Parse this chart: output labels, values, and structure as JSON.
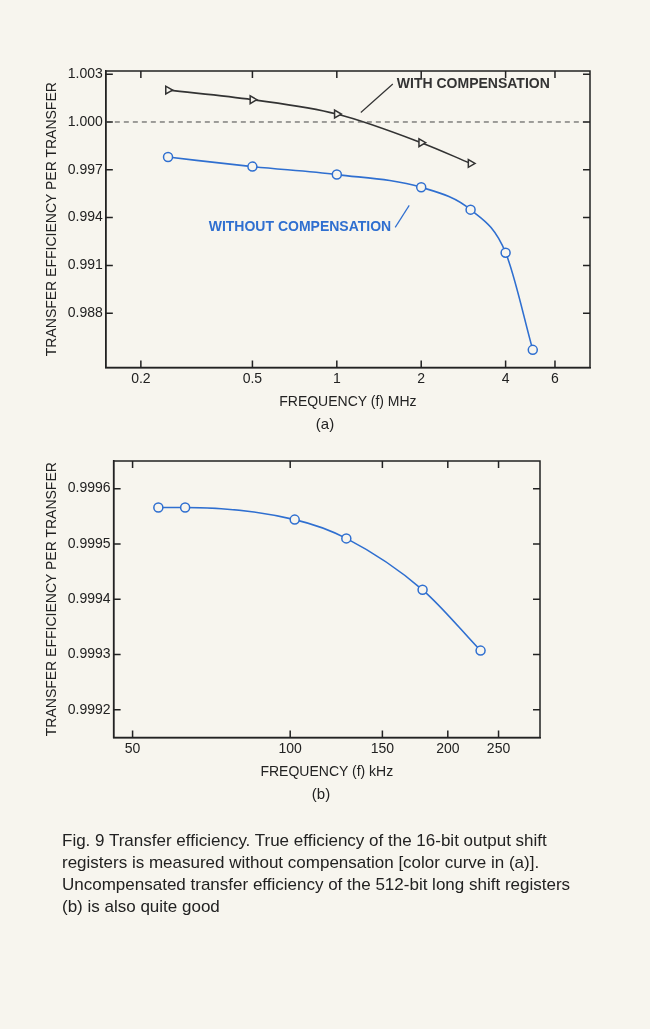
{
  "chart_data": [
    {
      "type": "line",
      "xlabel": "FREQUENCY (f) MHz",
      "ylabel": "TRANSFER EFFICIENCY PER TRANSFER",
      "log": "x",
      "xlim": [
        0.15,
        8
      ],
      "xticks": [
        0.2,
        0.5,
        1,
        2,
        4,
        6
      ],
      "ylim": [
        0.9846,
        1.0032
      ],
      "yticks": [
        0.988,
        0.991,
        0.994,
        0.997,
        {
          "value": 1,
          "label": "1.000"
        },
        1.003
      ],
      "grid": false,
      "legend": false,
      "ref_lines": [
        {
          "axis": "y",
          "value": 1,
          "line_style": "dashed",
          "color": "#444444"
        }
      ],
      "series": [
        {
          "name": "WITH COMPENSATION",
          "color": "#333333",
          "marker": "triangle",
          "x": [
            0.25,
            0.5,
            1,
            2,
            3
          ],
          "values": [
            1.002,
            1.0014,
            1.0005,
            0.9987,
            0.9974
          ]
        },
        {
          "name": "WITHOUT COMPENSATION",
          "color": "#2f6fd0",
          "marker": "circle",
          "x": [
            0.25,
            0.5,
            1,
            2,
            3,
            4,
            5
          ],
          "values": [
            0.9978,
            0.9972,
            0.9967,
            0.9959,
            0.9945,
            0.9918,
            0.9857
          ]
        }
      ],
      "annotations": [
        "(a)"
      ]
    },
    {
      "type": "line",
      "xlabel": "FREQUENCY (f) kHz",
      "ylabel": "TRANSFER EFFICIENCY PER TRANSFER",
      "log": "x",
      "xlim": [
        46,
        300
      ],
      "xticks": [
        50,
        100,
        150,
        200,
        250
      ],
      "ylim": [
        0.99915,
        0.99965
      ],
      "yticks": [
        0.9992,
        0.9993,
        0.9994,
        0.9995,
        0.9996
      ],
      "grid": false,
      "legend": false,
      "series": [
        {
          "color": "#2f6fd0",
          "marker": "circle",
          "x": [
            56,
            63,
            102,
            128,
            179,
            231
          ],
          "values": [
            0.999566,
            0.999566,
            0.999544,
            0.99951,
            0.999417,
            0.999307
          ]
        }
      ],
      "annotations": [
        "(b)",
        "Fig. 9  Transfer efficiency. True efficiency of the 16-bit output shift registers is measured without compensation [color curve in (a)]. Uncompensated transfer efficiency of the 512-bit long shift registers (b) is also quite good"
      ]
    }
  ]
}
